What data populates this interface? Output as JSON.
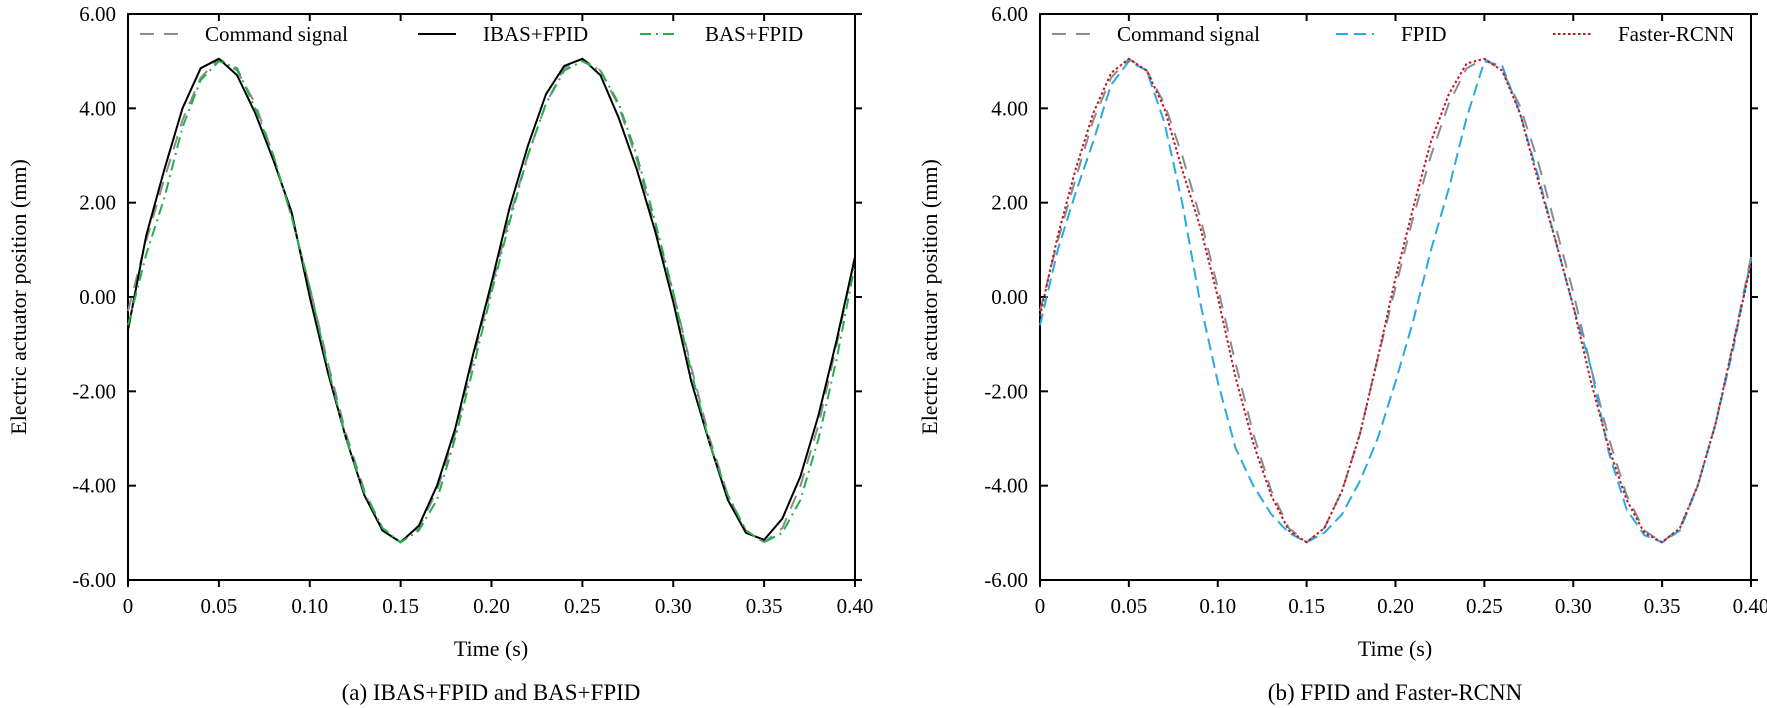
{
  "colors": {
    "command": "#8c8c8c",
    "ibas": "#000000",
    "bas": "#22b04b",
    "fpid": "#29a9e1",
    "faster": "#c0151c",
    "axis": "#000000"
  },
  "chart_data": [
    {
      "type": "line",
      "id": "a",
      "caption": "(a) IBAS+FPID and BAS+FPID",
      "xlabel": "Time (s)",
      "ylabel": "Electric actuator position (mm)",
      "xlim": [
        0,
        0.4
      ],
      "ylim": [
        -6,
        6
      ],
      "xticks": [
        0,
        0.05,
        0.1,
        0.15,
        0.2,
        0.25,
        0.3,
        0.35,
        0.4
      ],
      "xtick_labels": [
        "0",
        "0.05",
        "0.10",
        "0.15",
        "0.20",
        "0.25",
        "0.30",
        "0.35",
        "0.40"
      ],
      "yticks": [
        -6,
        -4,
        -2,
        0,
        2,
        4,
        6
      ],
      "ytick_labels": [
        "-6.00",
        "-4.00",
        "-2.00",
        "0.00",
        "2.00",
        "4.00",
        "6.00"
      ],
      "legend_position": "top",
      "series": [
        {
          "name": "Command signal",
          "color_key": "command",
          "dash": "dash-gap",
          "width": 2,
          "x": [
            0,
            0.01,
            0.02,
            0.03,
            0.04,
            0.05,
            0.06,
            0.07,
            0.08,
            0.09,
            0.1,
            0.11,
            0.12,
            0.13,
            0.14,
            0.15,
            0.16,
            0.17,
            0.18,
            0.19,
            0.2,
            0.21,
            0.22,
            0.23,
            0.24,
            0.25,
            0.26,
            0.27,
            0.28,
            0.29,
            0.3,
            0.31,
            0.32,
            0.33,
            0.34,
            0.35,
            0.36,
            0.37,
            0.38,
            0.39,
            0.4
          ],
          "y": [
            -0.3,
            1.2,
            2.5,
            3.75,
            4.65,
            5.05,
            4.8,
            4.1,
            3.0,
            1.7,
            0.2,
            -1.4,
            -2.9,
            -4.1,
            -4.9,
            -5.2,
            -4.9,
            -4.1,
            -2.9,
            -1.3,
            0.2,
            1.7,
            3.0,
            4.1,
            4.85,
            5.05,
            4.8,
            4.05,
            2.9,
            1.5,
            0.1,
            -1.5,
            -3.0,
            -4.2,
            -4.95,
            -5.2,
            -4.9,
            -4.0,
            -2.7,
            -1.0,
            0.85
          ]
        },
        {
          "name": "IBAS+FPID",
          "color_key": "ibas",
          "dash": "solid",
          "width": 2,
          "x": [
            0,
            0.01,
            0.02,
            0.03,
            0.04,
            0.05,
            0.06,
            0.07,
            0.08,
            0.09,
            0.1,
            0.11,
            0.12,
            0.13,
            0.14,
            0.15,
            0.16,
            0.17,
            0.18,
            0.19,
            0.2,
            0.21,
            0.22,
            0.23,
            0.24,
            0.25,
            0.26,
            0.27,
            0.28,
            0.29,
            0.3,
            0.31,
            0.32,
            0.33,
            0.34,
            0.35,
            0.36,
            0.37,
            0.38,
            0.39,
            0.4
          ],
          "y": [
            -0.7,
            1.3,
            2.7,
            4.0,
            4.85,
            5.05,
            4.7,
            3.9,
            2.9,
            1.8,
            0.0,
            -1.6,
            -3.0,
            -4.2,
            -4.95,
            -5.2,
            -4.85,
            -4.0,
            -2.8,
            -1.2,
            0.3,
            1.9,
            3.2,
            4.3,
            4.9,
            5.05,
            4.7,
            3.8,
            2.7,
            1.4,
            -0.1,
            -1.8,
            -3.1,
            -4.3,
            -5.0,
            -5.15,
            -4.7,
            -3.8,
            -2.5,
            -0.9,
            0.85
          ]
        },
        {
          "name": "BAS+FPID",
          "color_key": "bas",
          "dash": "dash-dot",
          "width": 2,
          "x": [
            0,
            0.01,
            0.02,
            0.03,
            0.04,
            0.05,
            0.06,
            0.07,
            0.08,
            0.09,
            0.1,
            0.11,
            0.12,
            0.13,
            0.14,
            0.15,
            0.16,
            0.17,
            0.18,
            0.19,
            0.2,
            0.21,
            0.22,
            0.23,
            0.24,
            0.25,
            0.26,
            0.27,
            0.28,
            0.29,
            0.3,
            0.31,
            0.32,
            0.33,
            0.34,
            0.35,
            0.36,
            0.37,
            0.38,
            0.39,
            0.4
          ],
          "y": [
            -0.6,
            0.9,
            2.1,
            3.6,
            4.6,
            5.0,
            4.85,
            4.0,
            3.0,
            1.7,
            0.2,
            -1.5,
            -3.0,
            -4.15,
            -4.9,
            -5.2,
            -4.95,
            -4.3,
            -3.0,
            -1.5,
            0.1,
            1.6,
            3.0,
            4.1,
            4.8,
            5.0,
            4.8,
            4.1,
            3.0,
            1.6,
            0.1,
            -1.6,
            -3.1,
            -4.2,
            -4.95,
            -5.2,
            -5.0,
            -4.3,
            -3.0,
            -1.3,
            0.7
          ]
        }
      ]
    },
    {
      "type": "line",
      "id": "b",
      "caption": "(b) FPID and Faster-RCNN",
      "xlabel": "Time (s)",
      "ylabel": "Electric actuator position (mm)",
      "xlim": [
        0,
        0.4
      ],
      "ylim": [
        -6,
        6
      ],
      "xticks": [
        0,
        0.05,
        0.1,
        0.15,
        0.2,
        0.25,
        0.3,
        0.35,
        0.4
      ],
      "xtick_labels": [
        "0",
        "0.05",
        "0.10",
        "0.15",
        "0.20",
        "0.25",
        "0.30",
        "0.35",
        "0.40"
      ],
      "yticks": [
        -6,
        -4,
        -2,
        0,
        2,
        4,
        6
      ],
      "ytick_labels": [
        "-6.00",
        "-4.00",
        "-2.00",
        "0.00",
        "2.00",
        "4.00",
        "6.00"
      ],
      "legend_position": "top",
      "series": [
        {
          "name": "Command signal",
          "color_key": "command",
          "dash": "dash-gap",
          "width": 2,
          "x": [
            0,
            0.01,
            0.02,
            0.03,
            0.04,
            0.05,
            0.06,
            0.07,
            0.08,
            0.09,
            0.1,
            0.11,
            0.12,
            0.13,
            0.14,
            0.15,
            0.16,
            0.17,
            0.18,
            0.19,
            0.2,
            0.21,
            0.22,
            0.23,
            0.24,
            0.25,
            0.26,
            0.27,
            0.28,
            0.29,
            0.3,
            0.31,
            0.32,
            0.33,
            0.34,
            0.35,
            0.36,
            0.37,
            0.38,
            0.39,
            0.4
          ],
          "y": [
            -0.3,
            1.2,
            2.5,
            3.75,
            4.65,
            5.05,
            4.8,
            4.1,
            3.0,
            1.7,
            0.2,
            -1.4,
            -2.9,
            -4.1,
            -4.9,
            -5.2,
            -4.9,
            -4.1,
            -2.9,
            -1.3,
            0.2,
            1.7,
            3.0,
            4.1,
            4.85,
            5.05,
            4.8,
            4.05,
            2.9,
            1.5,
            0.1,
            -1.5,
            -3.0,
            -4.2,
            -4.95,
            -5.2,
            -4.9,
            -4.0,
            -2.7,
            -1.0,
            0.85
          ]
        },
        {
          "name": "FPID",
          "color_key": "fpid",
          "dash": "dash",
          "width": 2,
          "x": [
            0,
            0.01,
            0.02,
            0.03,
            0.04,
            0.05,
            0.06,
            0.07,
            0.08,
            0.09,
            0.1,
            0.11,
            0.12,
            0.13,
            0.14,
            0.15,
            0.16,
            0.17,
            0.18,
            0.19,
            0.2,
            0.21,
            0.22,
            0.23,
            0.24,
            0.25,
            0.26,
            0.27,
            0.28,
            0.29,
            0.3,
            0.31,
            0.32,
            0.33,
            0.34,
            0.35,
            0.36,
            0.37,
            0.38,
            0.39,
            0.4
          ],
          "y": [
            -0.6,
            1.0,
            2.2,
            3.3,
            4.5,
            5.0,
            4.8,
            3.7,
            2.0,
            -0.1,
            -1.8,
            -3.2,
            -4.0,
            -4.6,
            -5.0,
            -5.2,
            -5.0,
            -4.6,
            -3.9,
            -3.0,
            -1.8,
            -0.5,
            1.0,
            2.3,
            3.8,
            5.0,
            4.9,
            3.9,
            2.6,
            1.2,
            -0.2,
            -1.5,
            -3.3,
            -4.5,
            -5.05,
            -5.2,
            -4.95,
            -4.0,
            -2.7,
            -1.1,
            0.8
          ]
        },
        {
          "name": "Faster-RCNN",
          "color_key": "faster",
          "dash": "dot",
          "width": 2,
          "x": [
            0,
            0.01,
            0.02,
            0.03,
            0.04,
            0.05,
            0.06,
            0.07,
            0.08,
            0.09,
            0.1,
            0.11,
            0.12,
            0.13,
            0.14,
            0.15,
            0.16,
            0.17,
            0.18,
            0.19,
            0.2,
            0.21,
            0.22,
            0.23,
            0.24,
            0.25,
            0.26,
            0.27,
            0.28,
            0.29,
            0.3,
            0.31,
            0.32,
            0.33,
            0.34,
            0.35,
            0.36,
            0.37,
            0.38,
            0.39,
            0.4
          ],
          "y": [
            -0.4,
            1.3,
            2.7,
            3.9,
            4.75,
            5.05,
            4.8,
            4.0,
            2.7,
            1.5,
            0.0,
            -1.7,
            -3.1,
            -4.2,
            -4.95,
            -5.2,
            -4.9,
            -4.1,
            -2.9,
            -1.3,
            0.4,
            1.9,
            3.3,
            4.3,
            4.95,
            5.05,
            4.8,
            3.9,
            2.5,
            1.2,
            -0.2,
            -1.8,
            -3.2,
            -4.3,
            -5.0,
            -5.2,
            -4.9,
            -4.0,
            -2.7,
            -1.0,
            0.7
          ]
        }
      ]
    }
  ]
}
